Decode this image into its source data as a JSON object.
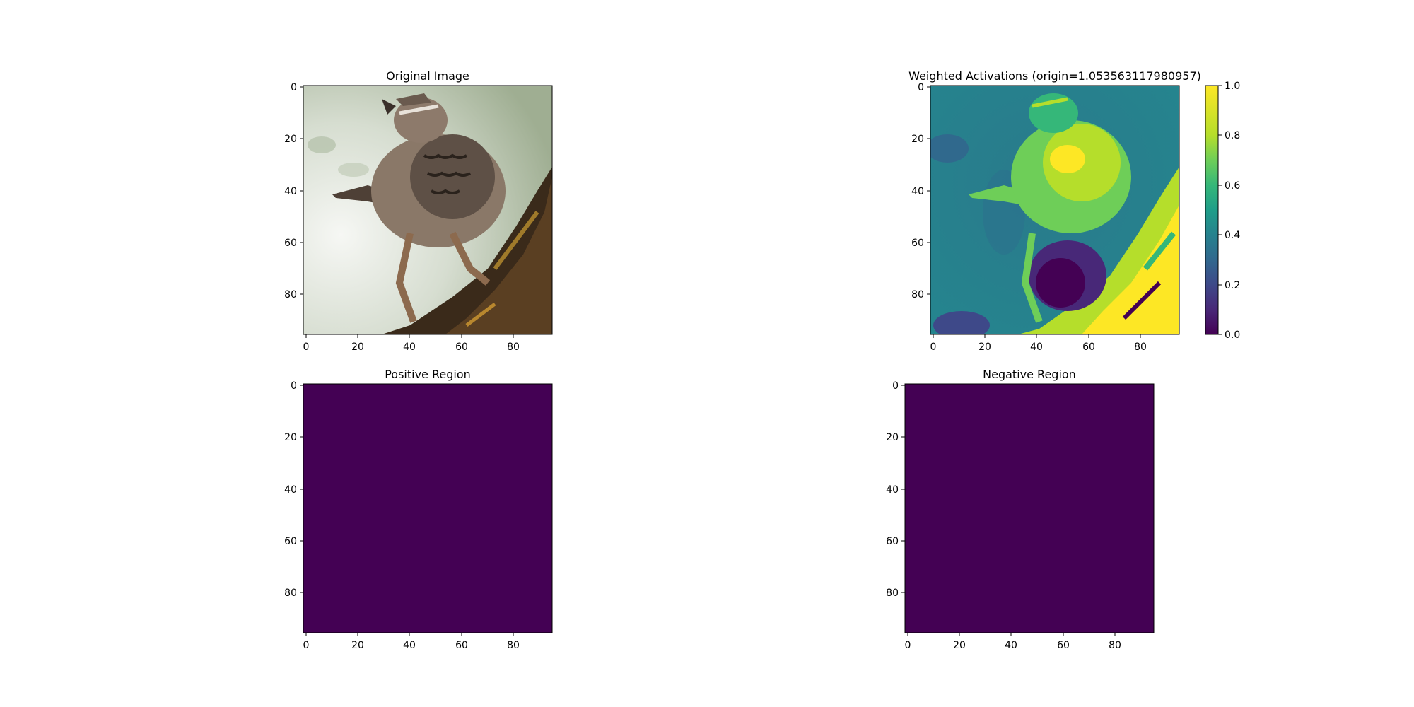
{
  "chart_data": [
    {
      "type": "image",
      "title": "Original Image",
      "image_content": "bird (wren) perched on bark",
      "xlim": [
        0,
        96
      ],
      "ylim": [
        96,
        0
      ],
      "x_ticks": [
        0,
        20,
        40,
        60,
        80
      ],
      "y_ticks": [
        0,
        20,
        40,
        60,
        80
      ],
      "colors": {
        "background": "#c9d3c2",
        "bird": "#7a6a5c",
        "branch": "#3a2a1a"
      }
    },
    {
      "type": "heatmap",
      "title": "Weighted Activations (origin=1.053563117980957)",
      "colormap": "viridis",
      "xlim": [
        0,
        96
      ],
      "ylim": [
        96,
        0
      ],
      "x_ticks": [
        0,
        20,
        40,
        60,
        80
      ],
      "y_ticks": [
        0,
        20,
        40,
        60,
        80
      ],
      "colorbar": {
        "range": [
          0.0,
          1.0
        ],
        "ticks": [
          "0.0",
          "0.2",
          "0.4",
          "0.6",
          "0.8",
          "1.0"
        ]
      }
    },
    {
      "type": "heatmap",
      "title": "Positive Region",
      "uniform_value": 0.0,
      "fill_color": "#440154",
      "xlim": [
        0,
        96
      ],
      "ylim": [
        96,
        0
      ],
      "x_ticks": [
        0,
        20,
        40,
        60,
        80
      ],
      "y_ticks": [
        0,
        20,
        40,
        60,
        80
      ]
    },
    {
      "type": "heatmap",
      "title": "Negative Region",
      "uniform_value": 0.0,
      "fill_color": "#440154",
      "xlim": [
        0,
        96
      ],
      "ylim": [
        96,
        0
      ],
      "x_ticks": [
        0,
        20,
        40,
        60,
        80
      ],
      "y_ticks": [
        0,
        20,
        40,
        60,
        80
      ]
    }
  ]
}
